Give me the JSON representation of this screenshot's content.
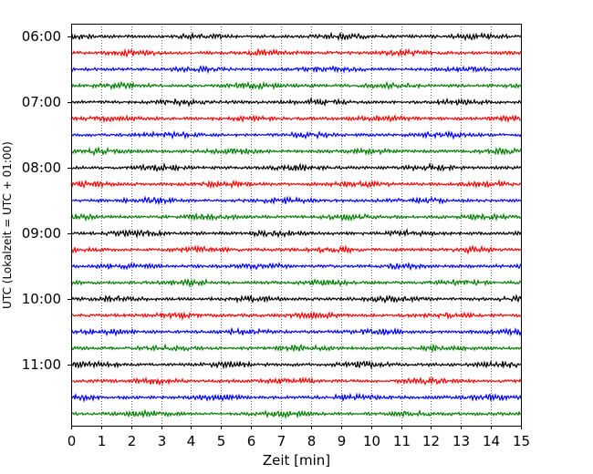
{
  "chart_data": {
    "type": "line",
    "title": "",
    "xlabel": "Zeit  [min]",
    "ylabel": "UTC (Lokalzeit = UTC + 01:00)",
    "xlim": [
      0,
      15
    ],
    "x_ticks": [
      0,
      1,
      2,
      3,
      4,
      5,
      6,
      7,
      8,
      9,
      10,
      11,
      12,
      13,
      14,
      15
    ],
    "x_tick_labels": [
      "0",
      "1",
      "2",
      "3",
      "4",
      "5",
      "6",
      "7",
      "8",
      "9",
      "10",
      "11",
      "12",
      "13",
      "14",
      "15"
    ],
    "y_tick_labels": [
      "06:00",
      "07:00",
      "08:00",
      "09:00",
      "10:00",
      "11:00"
    ],
    "grid": "vertical dotted",
    "trace_colors": [
      "#000000",
      "#ff0000",
      "#0000ff",
      "#008000"
    ],
    "trace_start_times": [
      "06:00",
      "06:15",
      "06:30",
      "06:45",
      "07:00",
      "07:15",
      "07:30",
      "07:45",
      "08:00",
      "08:15",
      "08:30",
      "08:45",
      "09:00",
      "09:15",
      "09:30",
      "09:45",
      "10:00",
      "10:15",
      "10:30",
      "10:45",
      "11:00",
      "11:15",
      "11:30",
      "11:45"
    ],
    "trace_minutes_per_line": 15
  }
}
